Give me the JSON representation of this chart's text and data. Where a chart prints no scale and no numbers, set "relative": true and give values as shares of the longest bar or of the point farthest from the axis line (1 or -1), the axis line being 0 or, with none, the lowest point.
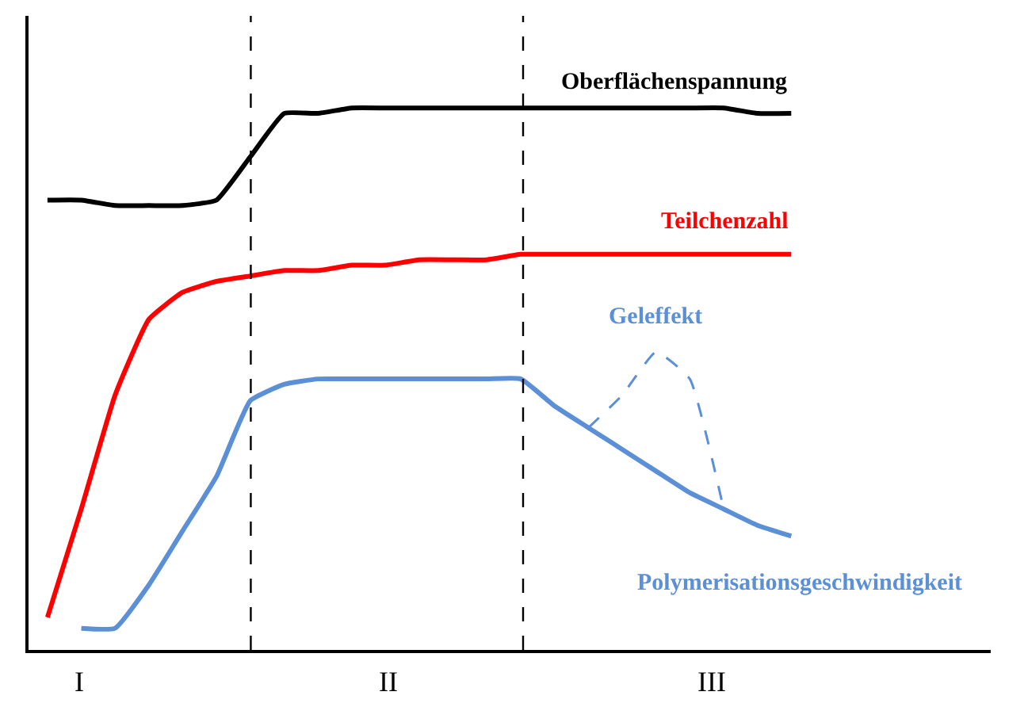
{
  "chart_data": {
    "type": "line",
    "relative": true,
    "categories": [
      null,
      null,
      null,
      null,
      null,
      null,
      null,
      null,
      null,
      null,
      null,
      null,
      null,
      null,
      null,
      null,
      null,
      null,
      null,
      null,
      null,
      null,
      null
    ],
    "series": [
      {
        "name": "Oberflächenspannung",
        "color": "#000000",
        "values": [
          0.83,
          0.83,
          0.82,
          0.82,
          0.82,
          0.83,
          0.91,
          0.99,
          0.99,
          1.0,
          1.0,
          1.0,
          1.0,
          1.0,
          1.0,
          1.0,
          1.0,
          1.0,
          1.0,
          1.0,
          1.0,
          0.99,
          0.99
        ]
      },
      {
        "name": "Teilchenzahl",
        "color": "#ff0000",
        "values": [
          0.06,
          0.26,
          0.47,
          0.61,
          0.66,
          0.68,
          0.69,
          0.7,
          0.7,
          0.71,
          0.71,
          0.72,
          0.72,
          0.72,
          0.73,
          0.73,
          0.73,
          0.73,
          0.73,
          0.73,
          0.73,
          0.73,
          0.73
        ]
      },
      {
        "name": "Polymerisationsgeschwindigkeit",
        "color": "#5b8fd6",
        "values": [
          null,
          0.04,
          0.04,
          0.12,
          0.22,
          0.32,
          0.46,
          0.49,
          0.5,
          0.5,
          0.5,
          0.5,
          0.5,
          0.5,
          0.5,
          0.45,
          0.41,
          0.37,
          0.33,
          0.29,
          0.26,
          0.23,
          0.21
        ]
      },
      {
        "name": "Geleffekt",
        "color": "#5b8fd6",
        "line_style": "dashed",
        "values": [
          null,
          null,
          null,
          null,
          null,
          null,
          null,
          null,
          null,
          null,
          null,
          null,
          null,
          null,
          null,
          null,
          0.41,
          0.47,
          0.55,
          0.5,
          0.26,
          null,
          null
        ]
      }
    ],
    "annotations": [
      "I",
      "II",
      "III"
    ],
    "legend": false,
    "marker": "none",
    "line_style": "solid"
  }
}
